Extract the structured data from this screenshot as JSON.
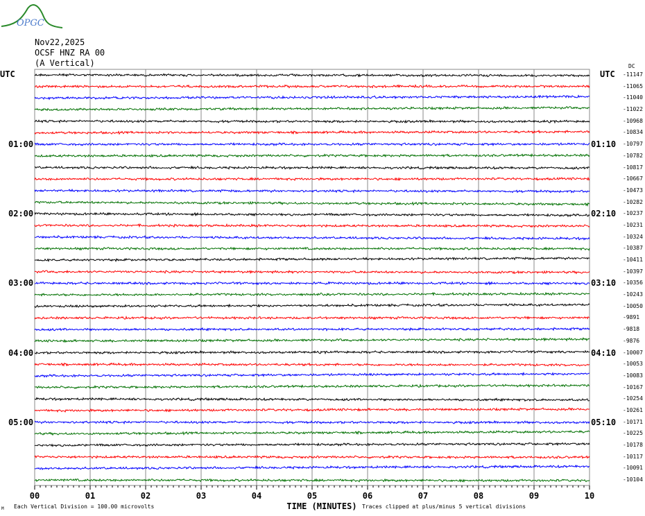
{
  "header": {
    "logo_text": "OPGC",
    "date": "Nov22,2025",
    "station": "OCSF HNZ RA 00",
    "component": "(A Vertical)"
  },
  "chart_data": {
    "type": "line",
    "title": "",
    "left_axis_label": "UTC",
    "right_axis_label": "UTC",
    "dc_label": "DC",
    "trace_colors": [
      "#000000",
      "#ff0000",
      "#0000ff",
      "#007000"
    ],
    "left_hour_labels": [
      {
        "trace": 6,
        "label": "01:00"
      },
      {
        "trace": 12,
        "label": "02:00"
      },
      {
        "trace": 18,
        "label": "03:00"
      },
      {
        "trace": 24,
        "label": "04:00"
      },
      {
        "trace": 30,
        "label": "05:00"
      }
    ],
    "right_hour_labels": [
      {
        "trace": 6,
        "label": "01:10"
      },
      {
        "trace": 12,
        "label": "02:10"
      },
      {
        "trace": 18,
        "label": "03:10"
      },
      {
        "trace": 24,
        "label": "04:10"
      },
      {
        "trace": 30,
        "label": "05:10"
      }
    ],
    "dc_offsets": [
      "-11147",
      "-11065",
      "-11040",
      "-11022",
      "-10968",
      "-10834",
      "-10797",
      "-10782",
      "-10817",
      "-10667",
      "-10473",
      "-10282",
      "-10237",
      "-10231",
      "-10324",
      "-10387",
      "-10411",
      "-10397",
      "-10356",
      "-10243",
      "-10050",
      "-9891",
      "-9818",
      "-9876",
      "-10007",
      "-10053",
      "-10083",
      "-10167",
      "-10254",
      "-10261",
      "-10171",
      "-10225",
      "-10178",
      "-10117",
      "-10091",
      "-10104"
    ],
    "x_ticks": [
      "00",
      "01",
      "02",
      "03",
      "04",
      "05",
      "06",
      "07",
      "08",
      "09",
      "10"
    ],
    "xlim": [
      0,
      10
    ],
    "xlabel": "TIME (MINUTES)",
    "grid": true,
    "scale_note": "Each Vertical Division =  100.00 microvolts",
    "clip_note": "Traces clipped at plus/minus 5 vertical divisions",
    "corner_mark": "M"
  }
}
